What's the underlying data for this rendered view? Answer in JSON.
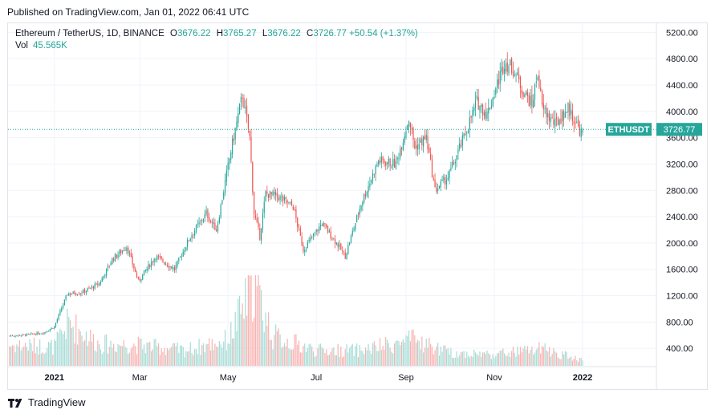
{
  "header": {
    "published": "Published on TradingView.com, Jan 01, 2022 06:41 UTC"
  },
  "legend": {
    "symbol": "Ethereum / TetherUS, 1D, BINANCE",
    "open_label": "O",
    "open": "3676.22",
    "high_label": "H",
    "high": "3765.27",
    "low_label": "L",
    "low": "3676.22",
    "close_label": "C",
    "close": "3726.77",
    "change": "+50.54 (+1.37%)",
    "vol_label": "Vol",
    "vol_value": "45.565K"
  },
  "price_tag": {
    "ticker": "ETHUSDT",
    "price": "3726.77"
  },
  "footer": {
    "brand": "TradingView"
  },
  "colors": {
    "up": "#26a69a",
    "down": "#ef5350",
    "grid": "#f0f3fa",
    "axis_text": "#131722",
    "tag_bg": "#26a69a"
  },
  "chart_data": {
    "type": "candlestick",
    "title": "Ethereum / TetherUS, 1D, BINANCE",
    "y_ticks": [
      400,
      800,
      1200,
      1600,
      2000,
      2400,
      2800,
      3200,
      3600,
      4000,
      4400,
      4800,
      5200
    ],
    "y_tick_labels": [
      "400.00",
      "800.00",
      "1200.00",
      "1600.00",
      "2000.00",
      "2400.00",
      "2800.00",
      "3200.00",
      "3600.00",
      "4000.00",
      "4400.00",
      "4800.00",
      "5200.00"
    ],
    "y_range": [
      0,
      5400
    ],
    "x_ticks": [
      {
        "label": "2021",
        "date": "2021-01-01",
        "bold": true
      },
      {
        "label": "Mar",
        "date": "2021-03-01",
        "bold": false
      },
      {
        "label": "May",
        "date": "2021-05-01",
        "bold": false
      },
      {
        "label": "Jul",
        "date": "2021-07-01",
        "bold": false
      },
      {
        "label": "Sep",
        "date": "2021-09-01",
        "bold": false
      },
      {
        "label": "Nov",
        "date": "2021-11-01",
        "bold": false
      },
      {
        "label": "2022",
        "date": "2022-01-01",
        "bold": true
      }
    ],
    "x_range": [
      "2020-11-30",
      "2022-02-21"
    ],
    "last_close": 3726.77,
    "close_anchors": [
      {
        "date": "2020-12-01",
        "close": 590
      },
      {
        "date": "2020-12-15",
        "close": 610
      },
      {
        "date": "2020-12-25",
        "close": 640
      },
      {
        "date": "2021-01-01",
        "close": 730
      },
      {
        "date": "2021-01-10",
        "close": 1230
      },
      {
        "date": "2021-01-20",
        "close": 1250
      },
      {
        "date": "2021-02-01",
        "close": 1380
      },
      {
        "date": "2021-02-10",
        "close": 1750
      },
      {
        "date": "2021-02-20",
        "close": 1950
      },
      {
        "date": "2021-02-28",
        "close": 1420
      },
      {
        "date": "2021-03-12",
        "close": 1800
      },
      {
        "date": "2021-03-25",
        "close": 1600
      },
      {
        "date": "2021-04-05",
        "close": 2100
      },
      {
        "date": "2021-04-16",
        "close": 2450
      },
      {
        "date": "2021-04-23",
        "close": 2200
      },
      {
        "date": "2021-05-03",
        "close": 3400
      },
      {
        "date": "2021-05-11",
        "close": 4250
      },
      {
        "date": "2021-05-16",
        "close": 3600
      },
      {
        "date": "2021-05-19",
        "close": 2450
      },
      {
        "date": "2021-05-23",
        "close": 2100
      },
      {
        "date": "2021-05-27",
        "close": 2750
      },
      {
        "date": "2021-06-05",
        "close": 2700
      },
      {
        "date": "2021-06-15",
        "close": 2550
      },
      {
        "date": "2021-06-22",
        "close": 1900
      },
      {
        "date": "2021-07-05",
        "close": 2300
      },
      {
        "date": "2021-07-15",
        "close": 2000
      },
      {
        "date": "2021-07-21",
        "close": 1800
      },
      {
        "date": "2021-08-01",
        "close": 2600
      },
      {
        "date": "2021-08-13",
        "close": 3250
      },
      {
        "date": "2021-08-25",
        "close": 3200
      },
      {
        "date": "2021-09-03",
        "close": 3900
      },
      {
        "date": "2021-09-07",
        "close": 3450
      },
      {
        "date": "2021-09-15",
        "close": 3600
      },
      {
        "date": "2021-09-21",
        "close": 2800
      },
      {
        "date": "2021-09-30",
        "close": 3000
      },
      {
        "date": "2021-10-10",
        "close": 3550
      },
      {
        "date": "2021-10-20",
        "close": 4150
      },
      {
        "date": "2021-10-27",
        "close": 3950
      },
      {
        "date": "2021-11-08",
        "close": 4750
      },
      {
        "date": "2021-11-14",
        "close": 4650
      },
      {
        "date": "2021-11-20",
        "close": 4350
      },
      {
        "date": "2021-11-27",
        "close": 4100
      },
      {
        "date": "2021-12-01",
        "close": 4600
      },
      {
        "date": "2021-12-04",
        "close": 4050
      },
      {
        "date": "2021-12-13",
        "close": 3800
      },
      {
        "date": "2021-12-22",
        "close": 4050
      },
      {
        "date": "2021-12-28",
        "close": 3800
      },
      {
        "date": "2021-12-31",
        "close": 3676
      },
      {
        "date": "2022-01-01",
        "close": 3726.77
      }
    ],
    "volume_anchors_k": [
      {
        "date": "2020-12-01",
        "volume": 160
      },
      {
        "date": "2021-01-01",
        "volume": 150
      },
      {
        "date": "2021-01-11",
        "volume": 330
      },
      {
        "date": "2021-02-01",
        "volume": 170
      },
      {
        "date": "2021-03-01",
        "volume": 160
      },
      {
        "date": "2021-04-01",
        "volume": 120
      },
      {
        "date": "2021-05-01",
        "volume": 200
      },
      {
        "date": "2021-05-19",
        "volume": 630
      },
      {
        "date": "2021-06-01",
        "volume": 230
      },
      {
        "date": "2021-07-01",
        "volume": 120
      },
      {
        "date": "2021-08-01",
        "volume": 120
      },
      {
        "date": "2021-09-07",
        "volume": 200
      },
      {
        "date": "2021-10-01",
        "volume": 100
      },
      {
        "date": "2021-11-01",
        "volume": 90
      },
      {
        "date": "2021-12-04",
        "volume": 130
      },
      {
        "date": "2022-01-01",
        "volume": 45.565
      }
    ],
    "volume_max_k": 700
  }
}
